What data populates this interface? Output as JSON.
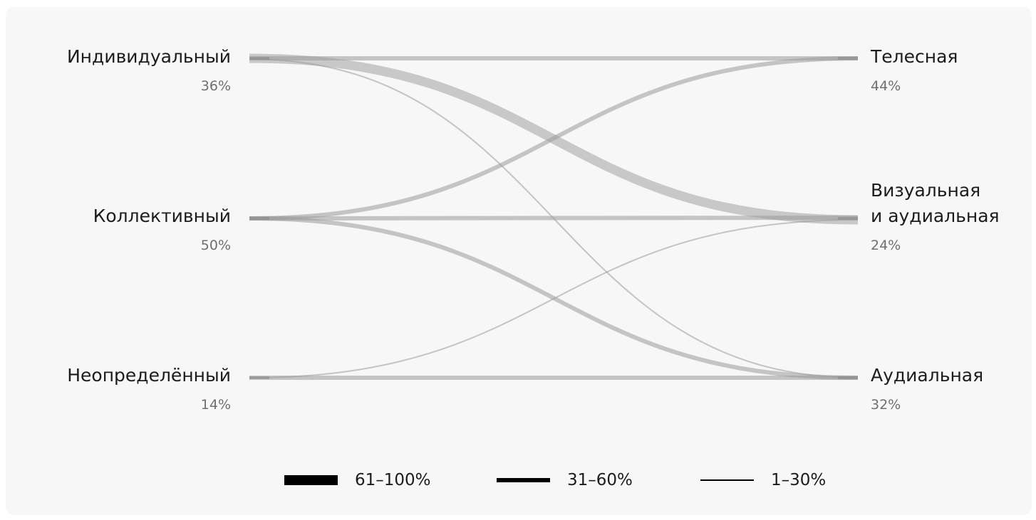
{
  "left_nodes": [
    {
      "id": "individual",
      "label": "Индивидуальный",
      "percent": "36%"
    },
    {
      "id": "collective",
      "label": "Коллективный",
      "percent": "50%"
    },
    {
      "id": "undefined",
      "label": "Неопределённый",
      "percent": "14%"
    }
  ],
  "right_nodes": [
    {
      "id": "bodily",
      "label_lines": [
        "Телесная"
      ],
      "percent": "44%"
    },
    {
      "id": "visual_audial",
      "label_lines": [
        "Визуальная",
        "и аудиальная"
      ],
      "percent": "24%"
    },
    {
      "id": "audial",
      "label_lines": [
        "Аудиальная"
      ],
      "percent": "32%"
    }
  ],
  "flows": [
    {
      "from": "individual",
      "to": "bodily",
      "band": "31–60%"
    },
    {
      "from": "individual",
      "to": "visual_audial",
      "band": "61–100%"
    },
    {
      "from": "individual",
      "to": "audial",
      "band": "1–30%"
    },
    {
      "from": "collective",
      "to": "bodily",
      "band": "31–60%"
    },
    {
      "from": "collective",
      "to": "visual_audial",
      "band": "31–60%"
    },
    {
      "from": "collective",
      "to": "audial",
      "band": "31–60%"
    },
    {
      "from": "undefined",
      "to": "visual_audial",
      "band": "1–30%"
    },
    {
      "from": "undefined",
      "to": "audial",
      "band": "31–60%"
    }
  ],
  "legend": [
    {
      "label": "61–100%",
      "weight": "heavy"
    },
    {
      "label": "31–60%",
      "weight": "medium"
    },
    {
      "label": "1–30%",
      "weight": "light"
    }
  ],
  "colors": {
    "background": "#f7f7f7",
    "flow": "#9a9a9a",
    "node_bar": "#8a8a8a",
    "text": "#1c1c1c",
    "muted_text": "#6f6f6f",
    "legend_swatch": "#000000"
  }
}
